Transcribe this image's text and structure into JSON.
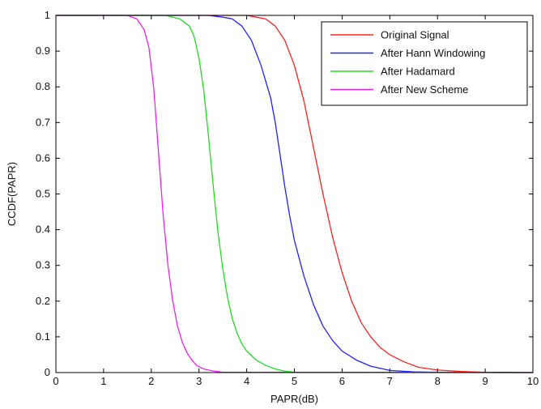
{
  "chart_data": {
    "type": "line",
    "title": "",
    "xlabel": "PAPR(dB)",
    "ylabel": "CCDF(PAPR)",
    "xlim": [
      0,
      10
    ],
    "ylim": [
      0,
      1
    ],
    "x_ticks": [
      "0",
      "1",
      "2",
      "3",
      "4",
      "5",
      "6",
      "7",
      "8",
      "9",
      "10"
    ],
    "y_ticks": [
      "0",
      "0.1",
      "0.2",
      "0.3",
      "0.4",
      "0.5",
      "0.6",
      "0.7",
      "0.8",
      "0.9",
      "1"
    ],
    "grid": false,
    "legend_position": "top-right",
    "series": [
      {
        "name": "Original Signal",
        "color": "#ff2020",
        "x": [
          0,
          3,
          3.5,
          4,
          4.2,
          4.4,
          4.6,
          4.8,
          5,
          5.2,
          5.4,
          5.6,
          5.8,
          6,
          6.2,
          6.4,
          6.6,
          6.8,
          7,
          7.3,
          7.6,
          8,
          8.5,
          9,
          10
        ],
        "y": [
          1,
          1,
          1,
          1,
          0.995,
          0.99,
          0.97,
          0.93,
          0.86,
          0.76,
          0.63,
          0.5,
          0.38,
          0.28,
          0.2,
          0.14,
          0.1,
          0.07,
          0.05,
          0.03,
          0.015,
          0.007,
          0.003,
          0.001,
          0
        ]
      },
      {
        "name": "After Hann Windowing",
        "color": "#2020ff",
        "x": [
          0,
          2.8,
          3.2,
          3.5,
          3.7,
          3.9,
          4.1,
          4.3,
          4.5,
          4.6,
          4.7,
          4.8,
          4.9,
          5,
          5.2,
          5.4,
          5.6,
          5.8,
          6,
          6.3,
          6.6,
          7,
          7.5,
          8,
          10
        ],
        "y": [
          1,
          1,
          1,
          0.995,
          0.99,
          0.97,
          0.93,
          0.86,
          0.77,
          0.7,
          0.61,
          0.52,
          0.44,
          0.37,
          0.27,
          0.19,
          0.13,
          0.09,
          0.06,
          0.035,
          0.018,
          0.006,
          0.002,
          0.001,
          0
        ]
      },
      {
        "name": "After Hadamard",
        "color": "#20dd20",
        "x": [
          0,
          2.3,
          2.6,
          2.8,
          2.9,
          3,
          3.1,
          3.2,
          3.3,
          3.4,
          3.5,
          3.6,
          3.7,
          3.8,
          3.9,
          4,
          4.2,
          4.4,
          4.6,
          4.8,
          5,
          10
        ],
        "y": [
          1,
          1,
          0.99,
          0.97,
          0.94,
          0.88,
          0.79,
          0.66,
          0.52,
          0.39,
          0.29,
          0.21,
          0.15,
          0.11,
          0.08,
          0.06,
          0.035,
          0.02,
          0.01,
          0.004,
          0.001,
          0
        ]
      },
      {
        "name": "After New Scheme",
        "color": "#ee20ee",
        "x": [
          0,
          1.5,
          1.7,
          1.85,
          1.95,
          2.05,
          2.15,
          2.25,
          2.35,
          2.45,
          2.55,
          2.65,
          2.75,
          2.85,
          2.95,
          3.1,
          3.3,
          3.5,
          10
        ],
        "y": [
          1,
          1,
          0.99,
          0.96,
          0.91,
          0.8,
          0.62,
          0.44,
          0.3,
          0.2,
          0.13,
          0.085,
          0.055,
          0.035,
          0.02,
          0.01,
          0.004,
          0.001,
          0
        ]
      }
    ]
  }
}
